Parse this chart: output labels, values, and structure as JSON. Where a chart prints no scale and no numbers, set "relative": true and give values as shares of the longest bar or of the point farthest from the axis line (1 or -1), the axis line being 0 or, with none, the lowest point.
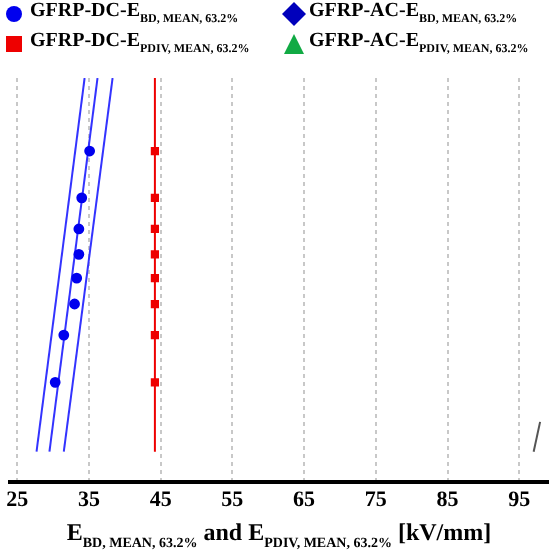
{
  "chart_data": {
    "type": "scatter",
    "xlabel": "E$_{BD, MEAN, 63.2%}$ and E$_{PDIV, MEAN, 63.2%}$ [kV/mm]",
    "relative": true,
    "xlim": [
      24,
      99
    ],
    "xticks": [
      25,
      35,
      45,
      55,
      65,
      75,
      85,
      95
    ],
    "grid": "x",
    "legend": "top",
    "series": [
      {
        "name": "GFRP-DC-E$_{BD, MEAN, 63.2%}$",
        "marker": "circle",
        "color": "#0000ee",
        "x": [
          35.1,
          34.0,
          33.6,
          33.6,
          33.3,
          33.0,
          31.5,
          30.3
        ],
        "values": [
          0.819,
          0.703,
          0.626,
          0.563,
          0.504,
          0.44,
          0.363,
          0.246
        ]
      },
      {
        "name": "GFRP-AC-E$_{BD, MEAN, 63.2%}$",
        "type": "scatter",
        "marker": "diamond",
        "color": "#0000bb"
      },
      {
        "name": "GFRP-DC-E$_{PDIV, MEAN, 63.2%}$",
        "marker": "square",
        "color": "#ee0000",
        "x": [
          44.2,
          44.2,
          44.2,
          44.2,
          44.2,
          44.2,
          44.2,
          44.2
        ],
        "values": [
          0.819,
          0.703,
          0.626,
          0.563,
          0.504,
          0.44,
          0.363,
          0.246
        ]
      },
      {
        "name": "GFRP-AC-E$_{PDIV, MEAN, 63.2%}$",
        "type": "scatter",
        "marker": "triangle",
        "color": "#11aa44"
      },
      {
        "type": "line",
        "color": "#3333ff",
        "x": [
          29.5,
          36.2
        ],
        "values": [
          0.074,
          1
        ]
      },
      {
        "type": "line",
        "color": "#3333ff",
        "x": [
          27.7,
          34.4
        ],
        "values": [
          0.074,
          1
        ]
      },
      {
        "type": "line",
        "color": "#3333ff",
        "x": [
          31.5,
          38.3
        ],
        "values": [
          0.074,
          1
        ]
      },
      {
        "type": "line",
        "color": "#ee0000",
        "x": [
          44.2,
          44.2
        ],
        "values": [
          0.074,
          1
        ]
      },
      {
        "type": "line",
        "color": "#555555",
        "x": [
          97.0,
          97.9
        ],
        "values": [
          0.074,
          0.148
        ]
      }
    ]
  }
}
